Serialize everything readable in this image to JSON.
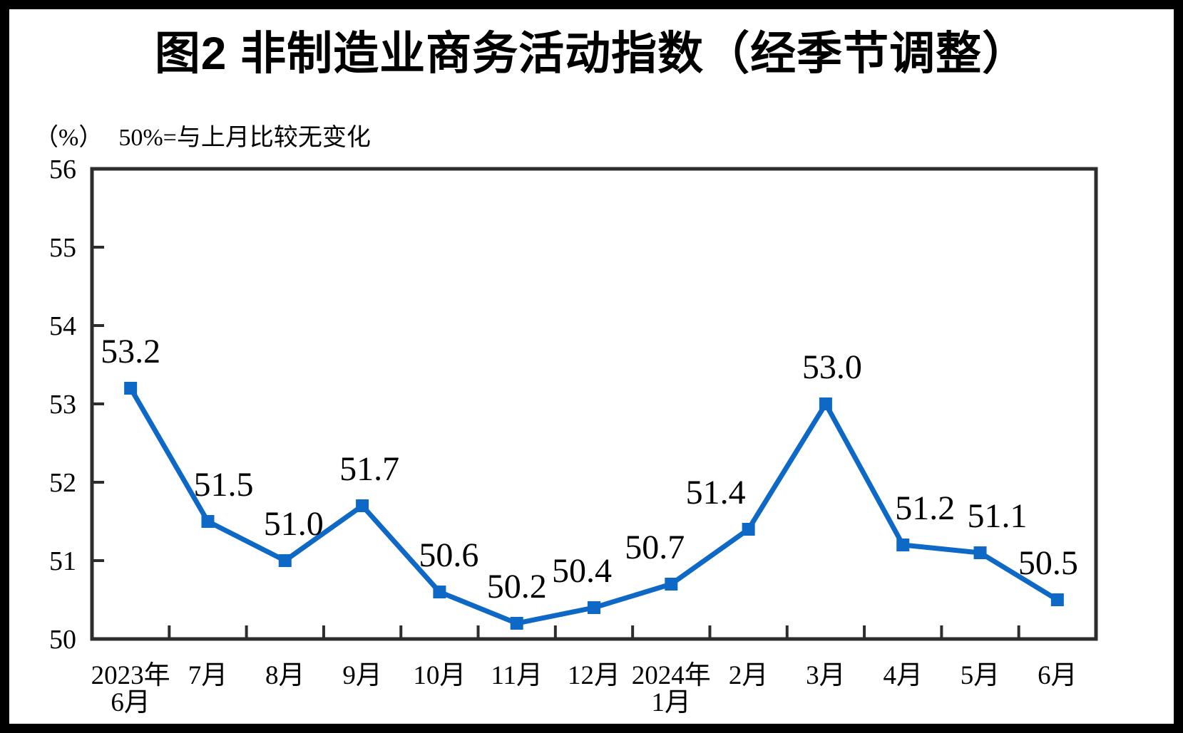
{
  "chart_data": {
    "type": "line",
    "title": "图2 非制造业商务活动指数（经季节调整）",
    "ylabel": "（%）",
    "annotation": "50%=与上月比较无变化",
    "categories": [
      [
        "2023年",
        "6月"
      ],
      [
        "7月"
      ],
      [
        "8月"
      ],
      [
        "9月"
      ],
      [
        "10月"
      ],
      [
        "11月"
      ],
      [
        "12月"
      ],
      [
        "2024年",
        "1月"
      ],
      [
        "2月"
      ],
      [
        "3月"
      ],
      [
        "4月"
      ],
      [
        "5月"
      ],
      [
        "6月"
      ]
    ],
    "values": [
      53.2,
      51.5,
      51.0,
      51.7,
      50.6,
      50.2,
      50.4,
      50.7,
      51.4,
      53.0,
      51.2,
      51.1,
      50.5
    ],
    "data_labels": [
      "53.2",
      "51.5",
      "51.0",
      "51.7",
      "50.6",
      "50.2",
      "50.4",
      "50.7",
      "51.4",
      "53.0",
      "51.2",
      "51.1",
      "50.5"
    ],
    "ylim": [
      50,
      56
    ],
    "yticks": [
      50,
      51,
      52,
      53,
      54,
      55,
      56
    ],
    "grid": false,
    "legend_position": "none",
    "line_color": "#0E68C5",
    "frame_color": "#2D2D2D",
    "marker": "square",
    "label_dx": [
      0,
      22,
      12,
      10,
      13,
      0,
      -17,
      -23,
      -46,
      9,
      31,
      24,
      -13
    ]
  }
}
